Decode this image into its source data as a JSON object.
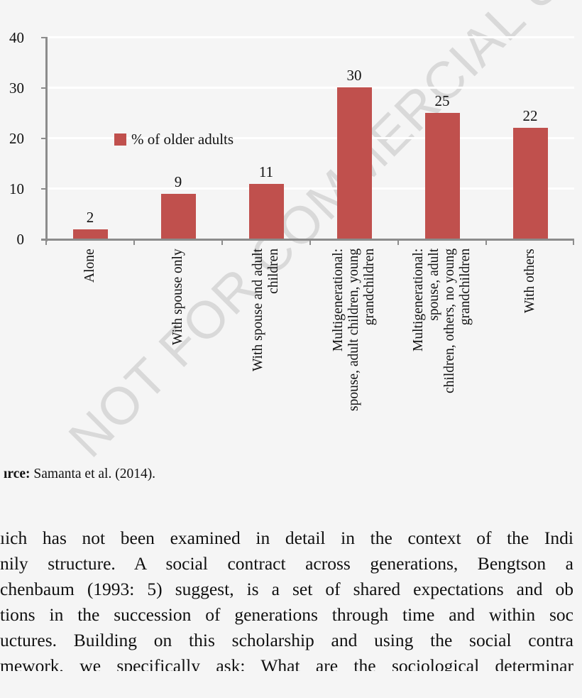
{
  "chart_data": {
    "type": "bar",
    "title": "",
    "xlabel": "",
    "ylabel": "",
    "ylim": [
      0,
      40
    ],
    "yticks": [
      0,
      10,
      20,
      30,
      40
    ],
    "grid": true,
    "legend_position": "inside-left",
    "categories": [
      "Alone",
      "With spouse only",
      "With spouse and adult children",
      "Multigenerational: spouse, adult children, young grandchildren",
      "Multigenerational: spouse, adult children, others, no young grandchildren",
      "With others"
    ],
    "category_lines": [
      [
        "Alone"
      ],
      [
        "With spouse only"
      ],
      [
        "With spouse and adult",
        "children"
      ],
      [
        "Multigenerational:",
        "spouse, adult children, young",
        "grandchildren"
      ],
      [
        "Multigenerational:",
        "spouse, adult",
        "children, others, no young",
        "grandchildren"
      ],
      [
        "With others"
      ]
    ],
    "series": [
      {
        "name": "% of older adults",
        "color": "#C0504D",
        "values": [
          2,
          9,
          11,
          30,
          25,
          22
        ]
      }
    ],
    "data_labels": [
      "2",
      "9",
      "11",
      "30",
      "25",
      "22"
    ]
  },
  "legend": {
    "label": "% of older adults",
    "color": "#C0504D"
  },
  "yaxis": {
    "ticks": [
      "0",
      "10",
      "20",
      "30",
      "40"
    ]
  },
  "source": {
    "prefix": "ırce:",
    "text": " Samanta et al. (2014)."
  },
  "body_text": {
    "lines": [
      "ıich has not been examined in detail in the context of the Indi",
      "nily structure. A social contract across generations, Bengtson a",
      "chenbaum (1993: 5) suggest, is a set of shared expectations and ob",
      "tions in the succession of generations through time and within soc",
      "uctures. Building on this scholarship and using the social contra",
      "mework, we specifically ask: What are the sociological determinar"
    ]
  },
  "watermark": "NOT FOR COMMERCIAL USE"
}
